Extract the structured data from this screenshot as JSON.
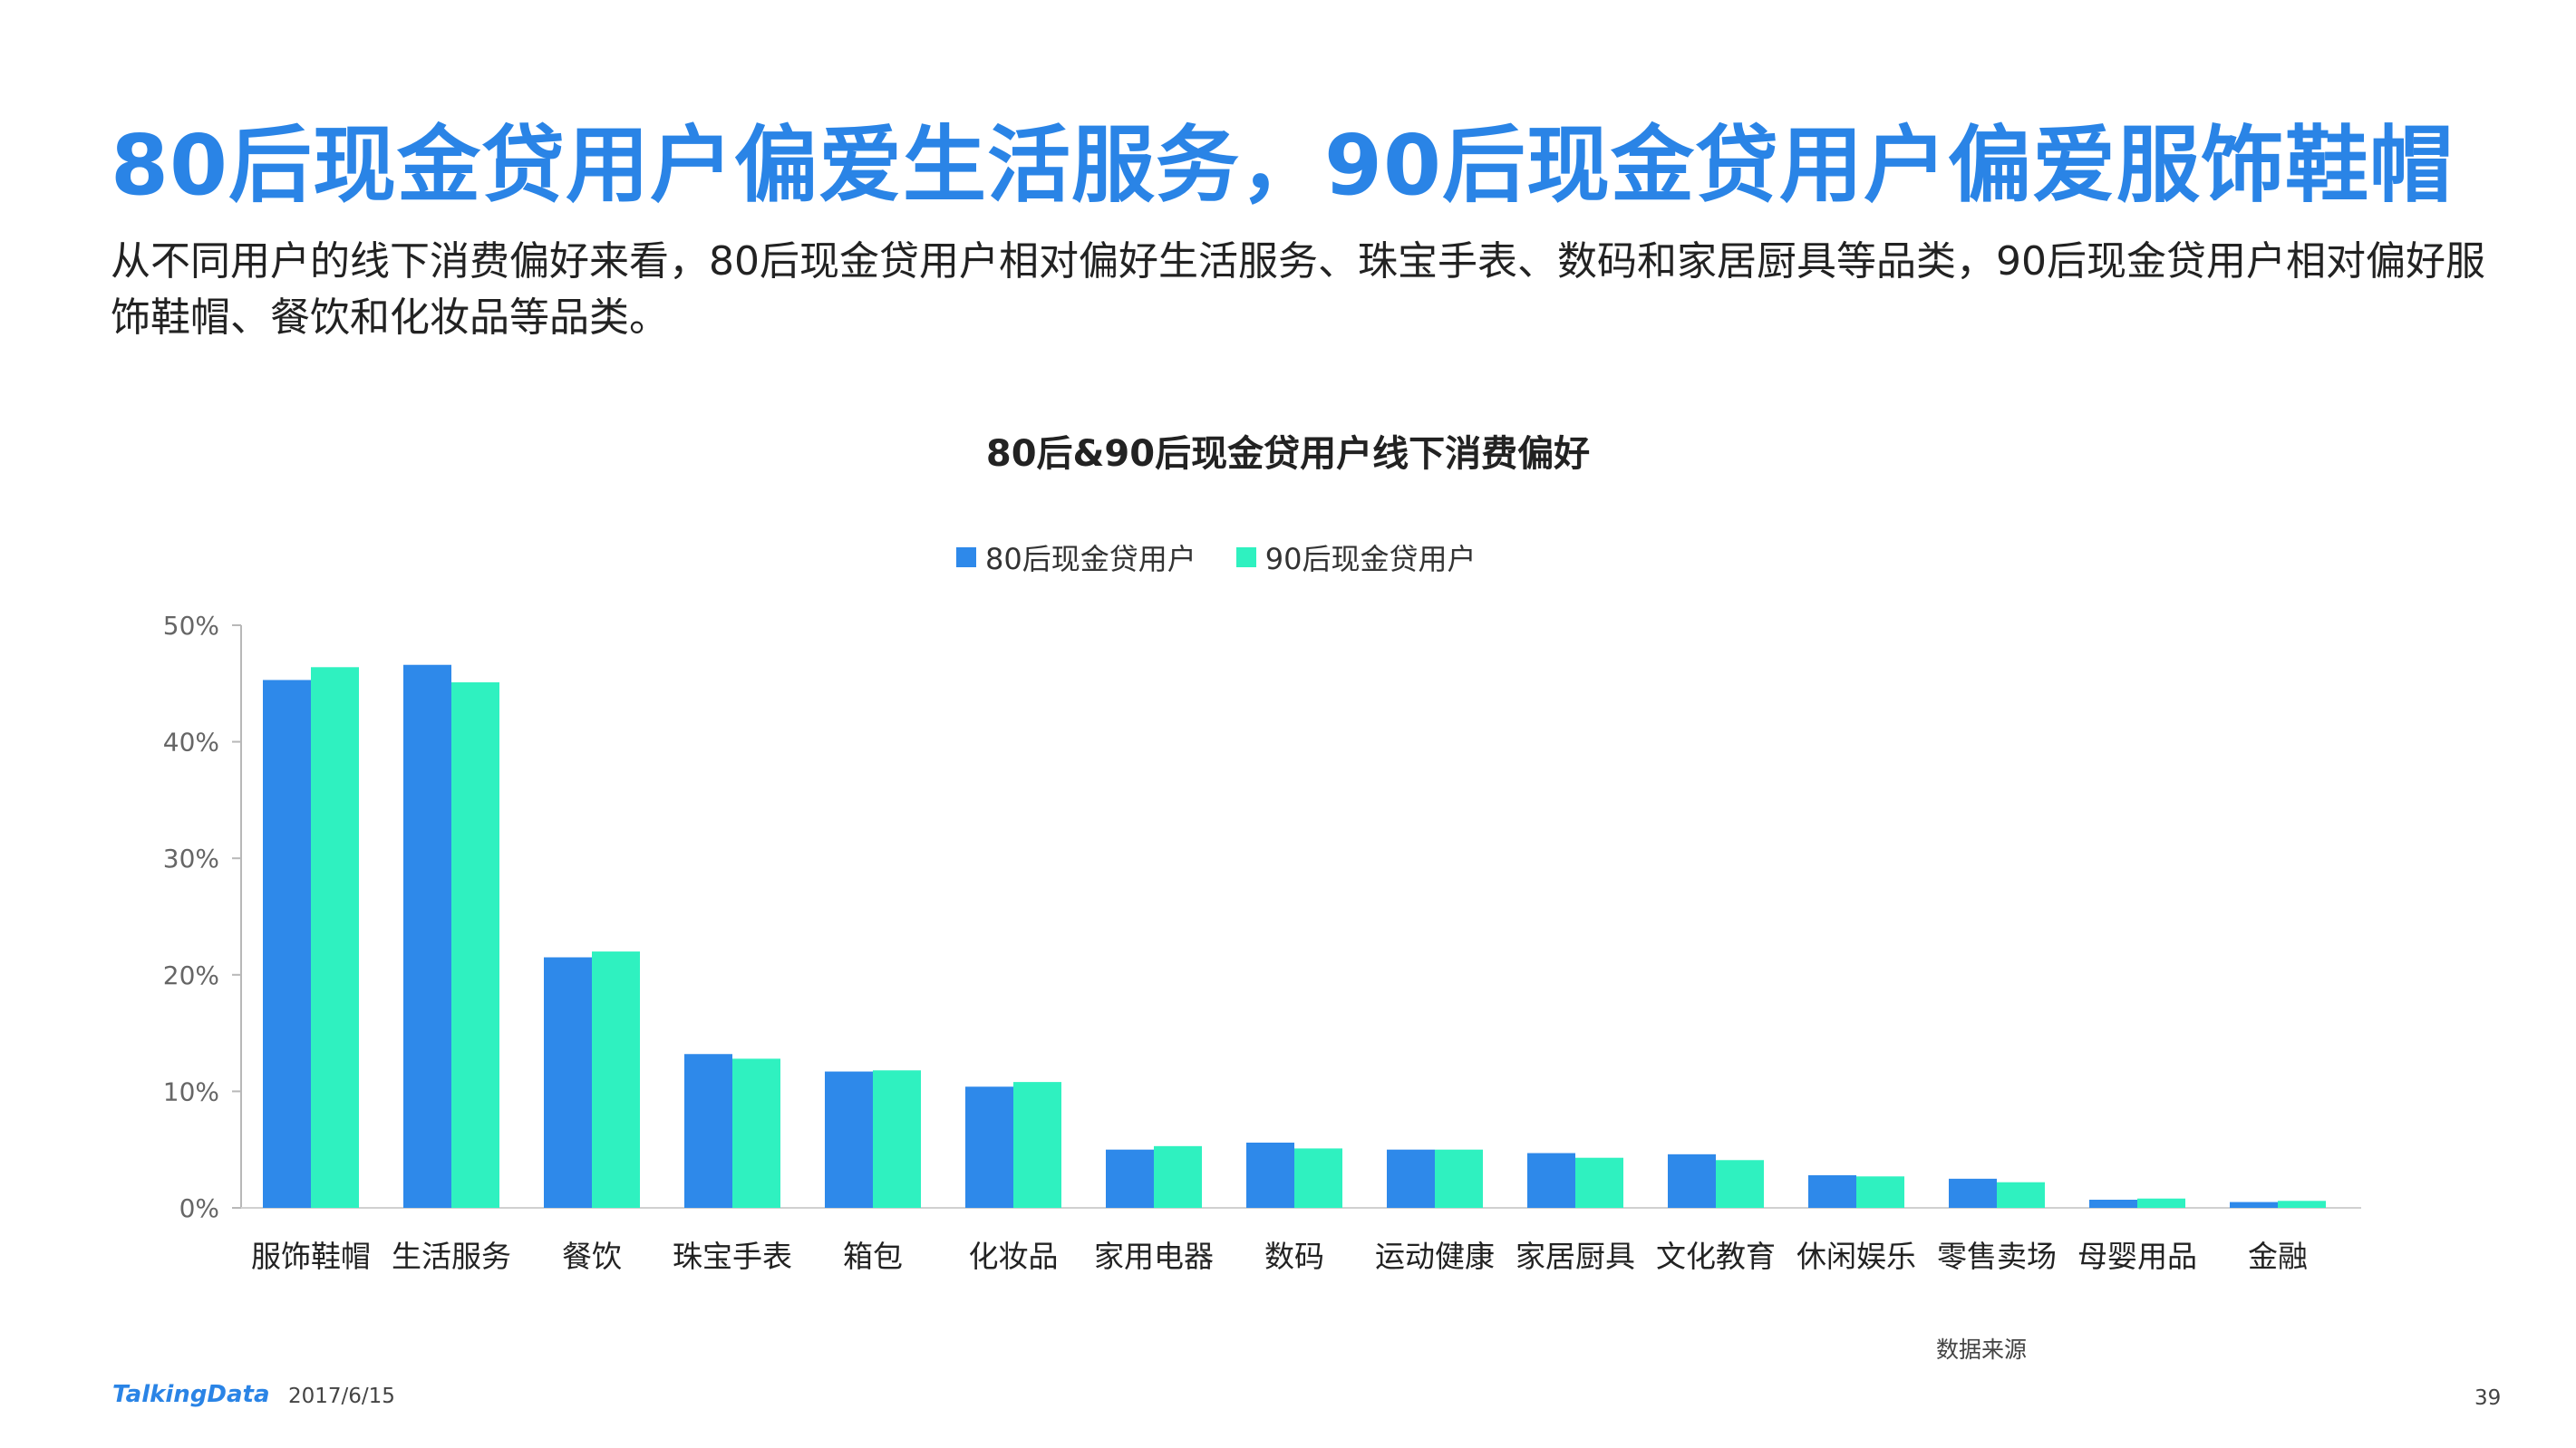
{
  "headline": "80后现金贷用户偏爱生活服务，90后现金贷用户偏爱服饰鞋帽",
  "subtitle": "从不同用户的线下消费偏好来看，80后现金贷用户相对偏好生活服务、珠宝手表、数码和家居厨具等品类，90后现金贷用户相对偏好服饰鞋帽、餐饮和化妆品等品类。",
  "footer": {
    "logo": "TalkingData",
    "date": "2017/6/15",
    "source": "数据来源",
    "page_number": "39"
  },
  "colors": {
    "series_80": "#2e89ea",
    "series_90": "#2ff1c0",
    "headline": "#2a84e6"
  },
  "chart_data": {
    "type": "bar",
    "title": "80后&90后现金贷用户线下消费偏好",
    "legend_position": "top-center",
    "grid": false,
    "ylim": [
      0,
      50
    ],
    "yticks": [
      "0%",
      "10%",
      "20%",
      "30%",
      "40%",
      "50%"
    ],
    "ytick_values": [
      0,
      10,
      20,
      30,
      40,
      50
    ],
    "categories": [
      "服饰鞋帽",
      "生活服务",
      "餐饮",
      "珠宝手表",
      "箱包",
      "化妆品",
      "家用电器",
      "数码",
      "运动健康",
      "家居厨具",
      "文化教育",
      "休闲娱乐",
      "零售卖场",
      "母婴用品",
      "金融"
    ],
    "series": [
      {
        "name": "80后现金贷用户",
        "color": "#2e89ea",
        "values": [
          45.3,
          46.6,
          21.5,
          13.2,
          11.7,
          10.4,
          5.0,
          5.6,
          5.0,
          4.7,
          4.6,
          2.8,
          2.5,
          0.7,
          0.5
        ]
      },
      {
        "name": "90后现金贷用户",
        "color": "#2ff1c0",
        "values": [
          46.4,
          45.1,
          22.0,
          12.8,
          11.8,
          10.8,
          5.3,
          5.1,
          5.0,
          4.3,
          4.1,
          2.7,
          2.2,
          0.8,
          0.6
        ]
      }
    ]
  }
}
